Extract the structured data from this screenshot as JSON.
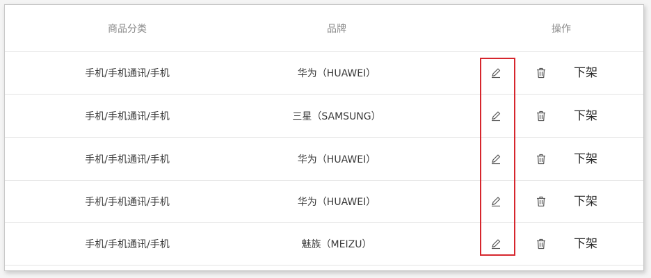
{
  "table": {
    "headers": {
      "category": "商品分类",
      "brand": "品牌",
      "actions": "操作"
    },
    "rows": [
      {
        "category": "手机/手机通讯/手机",
        "brand": "华为（HUAWEI）",
        "edit_icon": "edit-icon",
        "delete_icon": "trash-icon",
        "offshelf_label": "下架"
      },
      {
        "category": "手机/手机通讯/手机",
        "brand": "三星（SAMSUNG）",
        "edit_icon": "edit-icon",
        "delete_icon": "trash-icon",
        "offshelf_label": "下架"
      },
      {
        "category": "手机/手机通讯/手机",
        "brand": "华为（HUAWEI）",
        "edit_icon": "edit-icon",
        "delete_icon": "trash-icon",
        "offshelf_label": "下架"
      },
      {
        "category": "手机/手机通讯/手机",
        "brand": "华为（HUAWEI）",
        "edit_icon": "edit-icon",
        "delete_icon": "trash-icon",
        "offshelf_label": "下架"
      },
      {
        "category": "手机/手机通讯/手机",
        "brand": "魅族（MEIZU）",
        "edit_icon": "edit-icon",
        "delete_icon": "trash-icon",
        "offshelf_label": "下架"
      }
    ]
  },
  "colors": {
    "highlight": "#d6262d",
    "header_text": "#8a8a8a",
    "body_text": "#3a3a3a",
    "divider": "#e3e3e3"
  }
}
